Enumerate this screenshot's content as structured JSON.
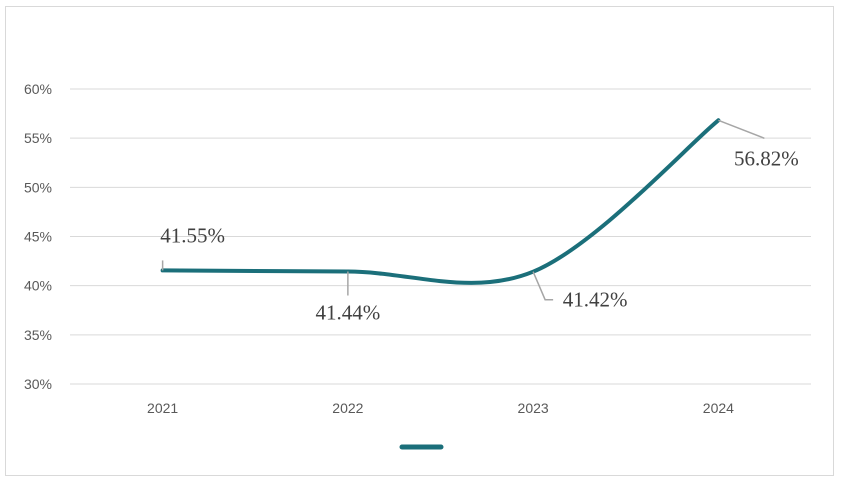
{
  "chart_data": {
    "type": "line",
    "title": "",
    "xlabel": "",
    "ylabel": "",
    "categories": [
      "2021",
      "2022",
      "2023",
      "2024"
    ],
    "series": [
      {
        "values": [
          41.55,
          41.44,
          41.42,
          56.82
        ],
        "data_labels": [
          "41.55%",
          "41.44%",
          "41.42%",
          "56.82%"
        ]
      }
    ],
    "ylim": [
      30,
      60
    ],
    "yticks": [
      30,
      35,
      40,
      45,
      50,
      55,
      60
    ],
    "ytick_labels": [
      "30%",
      "35%",
      "40%",
      "45%",
      "50%",
      "55%",
      "60%"
    ],
    "grid": true,
    "smooth": true,
    "legend_position": "bottom",
    "line_color": "#1b6f7a",
    "grid_color": "#d9d9d9"
  }
}
